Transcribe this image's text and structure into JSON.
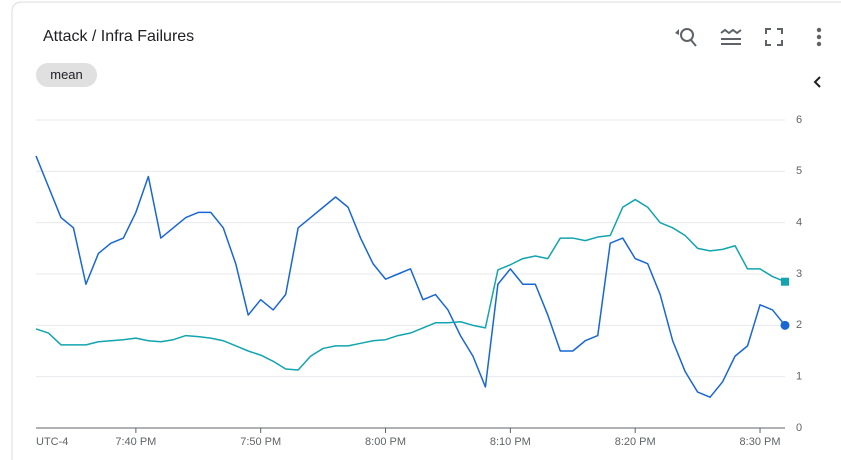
{
  "chart_data": {
    "type": "line",
    "title": "Attack / Infra Failures",
    "chip": "mean",
    "timezone_label": "UTC-4",
    "x": [
      1172,
      1173,
      1174,
      1175,
      1176,
      1177,
      1178,
      1179,
      1180,
      1181,
      1182,
      1183,
      1184,
      1185,
      1186,
      1187,
      1188,
      1189,
      1190,
      1191,
      1192,
      1193,
      1194,
      1195,
      1196,
      1197,
      1198,
      1199,
      1200,
      1201,
      1202,
      1203,
      1204,
      1205,
      1206,
      1207,
      1208,
      1209,
      1210,
      1211,
      1212,
      1213,
      1214,
      1215,
      1216,
      1217,
      1218,
      1219,
      1220,
      1221,
      1222,
      1223,
      1224,
      1225,
      1226,
      1227,
      1228,
      1229,
      1230,
      1231,
      1232
    ],
    "series": [
      {
        "color": "#1967d2",
        "marker": "circle",
        "values": [
          5.3,
          4.7,
          4.1,
          3.9,
          2.8,
          3.4,
          3.6,
          3.7,
          4.2,
          4.9,
          3.7,
          3.9,
          4.1,
          4.2,
          4.2,
          3.9,
          3.2,
          2.2,
          2.5,
          2.3,
          2.6,
          3.9,
          4.1,
          4.3,
          4.5,
          4.3,
          3.7,
          3.2,
          2.9,
          3.0,
          3.1,
          2.5,
          2.6,
          2.3,
          1.8,
          1.4,
          0.8,
          2.8,
          3.1,
          2.8,
          2.8,
          2.2,
          1.5,
          1.5,
          1.7,
          1.8,
          3.6,
          3.7,
          3.3,
          3.2,
          2.6,
          1.7,
          1.1,
          0.7,
          0.6,
          0.9,
          1.4,
          1.6,
          2.4,
          2.3,
          2.0
        ]
      },
      {
        "color": "#12a4af",
        "marker": "square",
        "values": [
          1.93,
          1.85,
          1.62,
          1.62,
          1.62,
          1.68,
          1.7,
          1.72,
          1.75,
          1.7,
          1.68,
          1.72,
          1.8,
          1.78,
          1.75,
          1.7,
          1.6,
          1.5,
          1.42,
          1.3,
          1.15,
          1.13,
          1.4,
          1.55,
          1.6,
          1.6,
          1.65,
          1.7,
          1.72,
          1.8,
          1.85,
          1.95,
          2.05,
          2.05,
          2.07,
          2.0,
          1.95,
          3.08,
          3.18,
          3.3,
          3.35,
          3.3,
          3.7,
          3.7,
          3.65,
          3.72,
          3.75,
          4.3,
          4.45,
          4.3,
          4.0,
          3.9,
          3.75,
          3.5,
          3.45,
          3.48,
          3.55,
          3.1,
          3.1,
          2.95,
          2.85
        ]
      }
    ],
    "xlim": [
      1172,
      1232
    ],
    "xticks": [
      {
        "value": 1180,
        "label": "7:40 PM"
      },
      {
        "value": 1190,
        "label": "7:50 PM"
      },
      {
        "value": 1200,
        "label": "8:00 PM"
      },
      {
        "value": 1210,
        "label": "8:10 PM"
      },
      {
        "value": 1220,
        "label": "8:20 PM"
      },
      {
        "value": 1230,
        "label": "8:30 PM"
      }
    ],
    "ylim": [
      0,
      6
    ],
    "yticks": [
      0,
      1,
      2,
      3,
      4,
      5,
      6
    ],
    "grid": true
  }
}
